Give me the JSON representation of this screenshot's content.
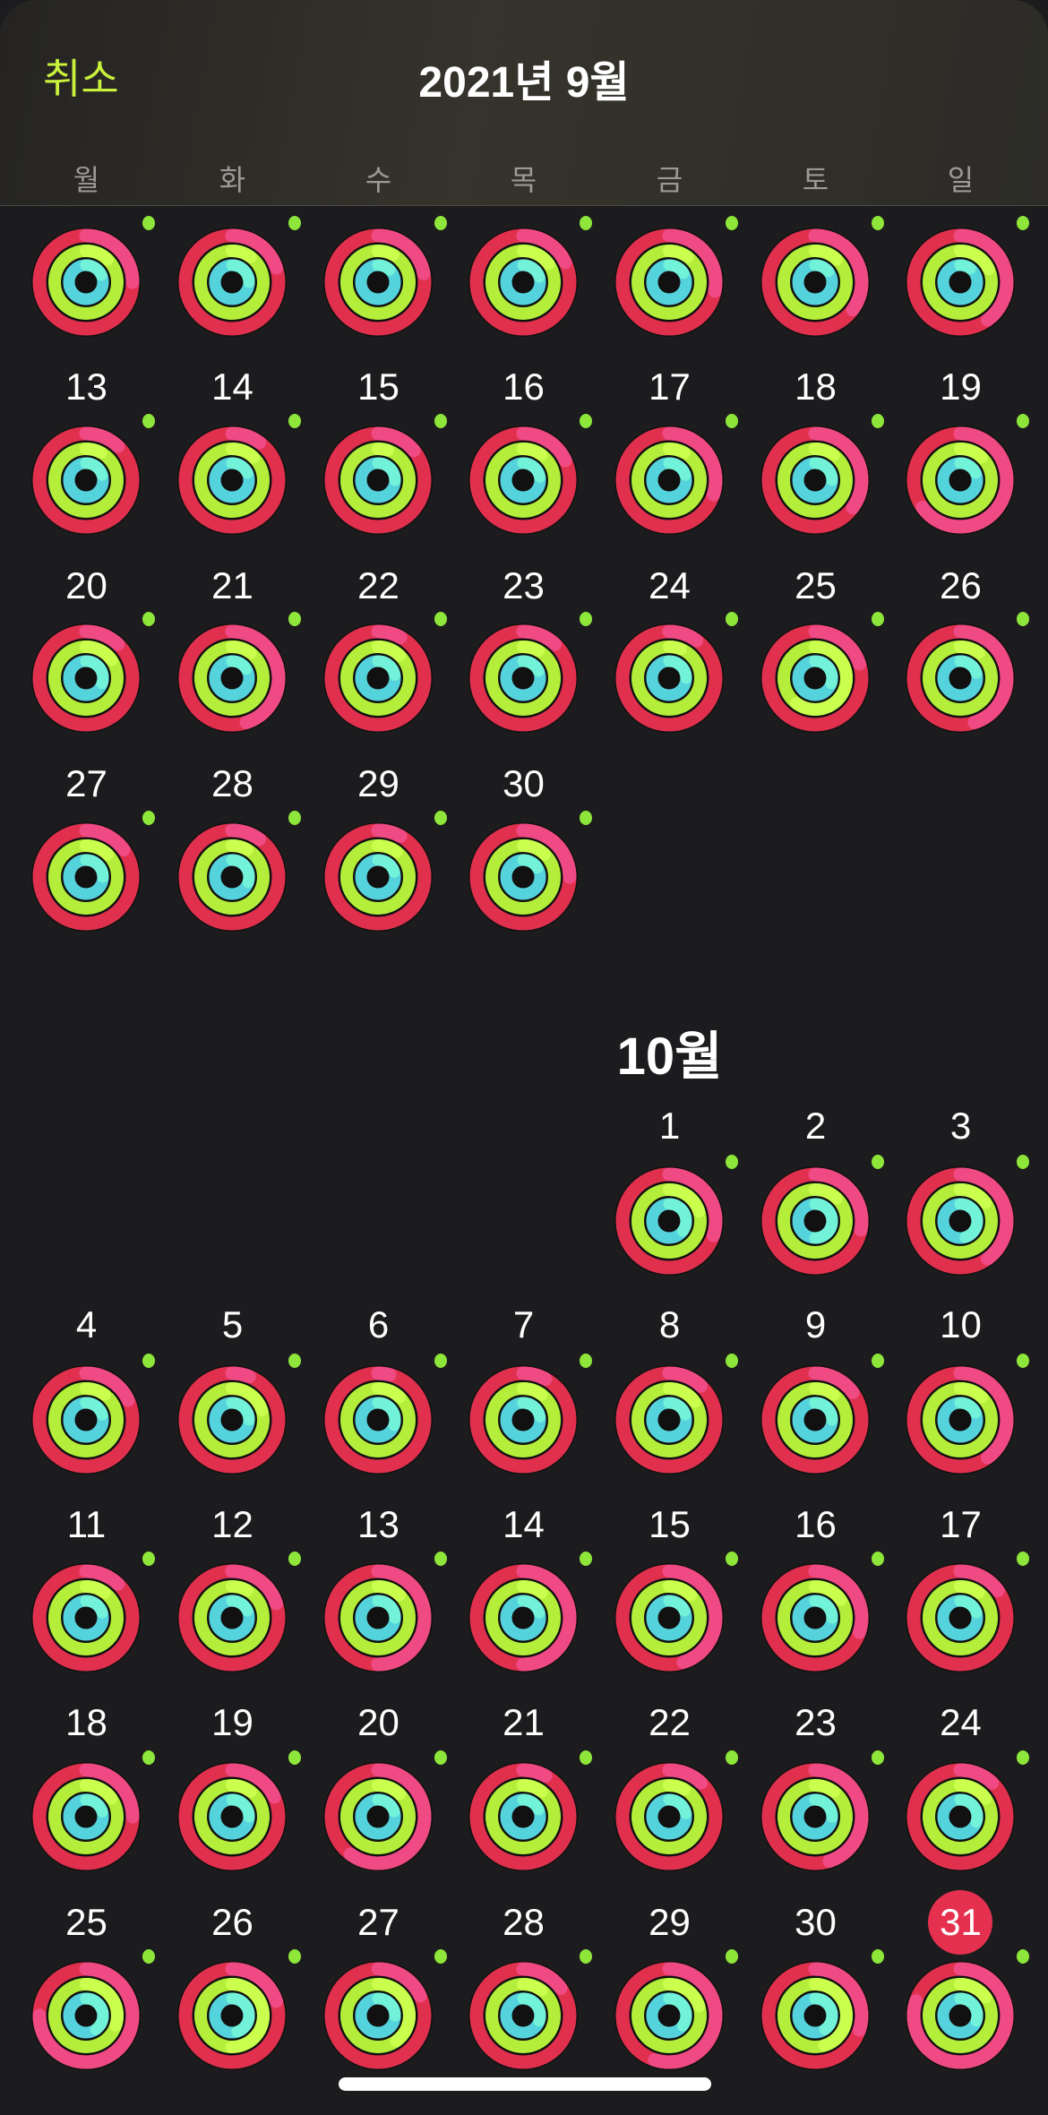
{
  "header": {
    "cancel_label": "취소",
    "title": "2021년 9월"
  },
  "weekdays": [
    "월",
    "화",
    "수",
    "목",
    "금",
    "토",
    "일"
  ],
  "colors": {
    "accent": "#c8f03c",
    "move": "#e0304e",
    "move_over": "#f04a85",
    "exercise": "#b4ee3a",
    "exercise_over": "#caff4e",
    "stand": "#55d3dc",
    "stand_over": "#72f2d8",
    "today": "#e5304f",
    "stand_dot": "#8ee63a"
  },
  "september": {
    "weeks": [
      [
        {
          "day": null,
          "rings": [
            125,
            112,
            118
          ]
        },
        {
          "day": null,
          "rings": [
            120,
            110,
            125
          ]
        },
        {
          "day": null,
          "rings": [
            122,
            108,
            112
          ]
        },
        {
          "day": null,
          "rings": [
            118,
            115,
            120
          ]
        },
        {
          "day": null,
          "rings": [
            128,
            110,
            116
          ]
        },
        {
          "day": null,
          "rings": [
            135,
            112,
            114
          ]
        },
        {
          "day": null,
          "rings": [
            140,
            118,
            110
          ]
        }
      ],
      [
        {
          "day": "13",
          "rings": [
            112,
            108,
            120
          ]
        },
        {
          "day": "14",
          "rings": [
            110,
            112,
            118
          ]
        },
        {
          "day": "15",
          "rings": [
            114,
            105,
            125
          ]
        },
        {
          "day": "16",
          "rings": [
            118,
            110,
            122
          ]
        },
        {
          "day": "17",
          "rings": [
            130,
            108,
            120
          ]
        },
        {
          "day": "18",
          "rings": [
            135,
            110,
            125
          ]
        },
        {
          "day": "19",
          "rings": [
            165,
            112,
            118
          ]
        }
      ],
      [
        {
          "day": "20",
          "rings": [
            112,
            115,
            130
          ]
        },
        {
          "day": "21",
          "rings": [
            145,
            110,
            116
          ]
        },
        {
          "day": "22",
          "rings": [
            108,
            112,
            122
          ]
        },
        {
          "day": "23",
          "rings": [
            112,
            108,
            118
          ]
        },
        {
          "day": "24",
          "rings": [
            110,
            106,
            125
          ]
        },
        {
          "day": "25",
          "rings": [
            120,
            160,
            130
          ]
        },
        {
          "day": "26",
          "rings": [
            145,
            110,
            120
          ]
        }
      ],
      [
        {
          "day": "27",
          "rings": [
            115,
            112,
            125
          ]
        },
        {
          "day": "28",
          "rings": [
            110,
            108,
            130
          ]
        },
        {
          "day": "29",
          "rings": [
            108,
            110,
            120
          ]
        },
        {
          "day": "30",
          "rings": [
            125,
            112,
            116
          ]
        }
      ]
    ]
  },
  "october": {
    "label": "10월",
    "weeks": [
      [
        {
          "day": "1",
          "rings": [
            130,
            120,
            135
          ]
        },
        {
          "day": "2",
          "rings": [
            128,
            112,
            150
          ]
        },
        {
          "day": "3",
          "rings": [
            140,
            115,
            145
          ]
        }
      ],
      [
        {
          "day": "4",
          "rings": [
            118,
            110,
            120
          ]
        },
        {
          "day": "5",
          "rings": [
            106,
            120,
            125
          ]
        },
        {
          "day": "6",
          "rings": [
            104,
            112,
            130
          ]
        },
        {
          "day": "7",
          "rings": [
            108,
            110,
            122
          ]
        },
        {
          "day": "8",
          "rings": [
            112,
            115,
            120
          ]
        },
        {
          "day": "9",
          "rings": [
            115,
            110,
            125
          ]
        },
        {
          "day": "10",
          "rings": [
            140,
            112,
            118
          ]
        }
      ],
      [
        {
          "day": "11",
          "rings": [
            112,
            110,
            120
          ]
        },
        {
          "day": "12",
          "rings": [
            120,
            108,
            118
          ]
        },
        {
          "day": "13",
          "rings": [
            150,
            112,
            125
          ]
        },
        {
          "day": "14",
          "rings": [
            150,
            110,
            120
          ]
        },
        {
          "day": "15",
          "rings": [
            145,
            112,
            118
          ]
        },
        {
          "day": "16",
          "rings": [
            130,
            115,
            125
          ]
        },
        {
          "day": "17",
          "rings": [
            115,
            110,
            120
          ]
        }
      ],
      [
        {
          "day": "18",
          "rings": [
            125,
            115,
            120
          ]
        },
        {
          "day": "19",
          "rings": [
            118,
            110,
            125
          ]
        },
        {
          "day": "20",
          "rings": [
            160,
            112,
            120
          ]
        },
        {
          "day": "21",
          "rings": [
            108,
            110,
            118
          ]
        },
        {
          "day": "22",
          "rings": [
            112,
            108,
            122
          ]
        },
        {
          "day": "23",
          "rings": [
            145,
            110,
            125
          ]
        },
        {
          "day": "24",
          "rings": [
            112,
            115,
            130
          ]
        }
      ],
      [
        {
          "day": "25",
          "rings": [
            175,
            130,
            140
          ]
        },
        {
          "day": "26",
          "rings": [
            120,
            150,
            145
          ]
        },
        {
          "day": "27",
          "rings": [
            118,
            140,
            125
          ]
        },
        {
          "day": "28",
          "rings": [
            115,
            110,
            130
          ]
        },
        {
          "day": "29",
          "rings": [
            155,
            120,
            135
          ]
        },
        {
          "day": "30",
          "rings": [
            130,
            145,
            140
          ]
        },
        {
          "day": "31",
          "rings": [
            180,
            115,
            130
          ],
          "today": true
        }
      ]
    ]
  },
  "home_indicator": true
}
